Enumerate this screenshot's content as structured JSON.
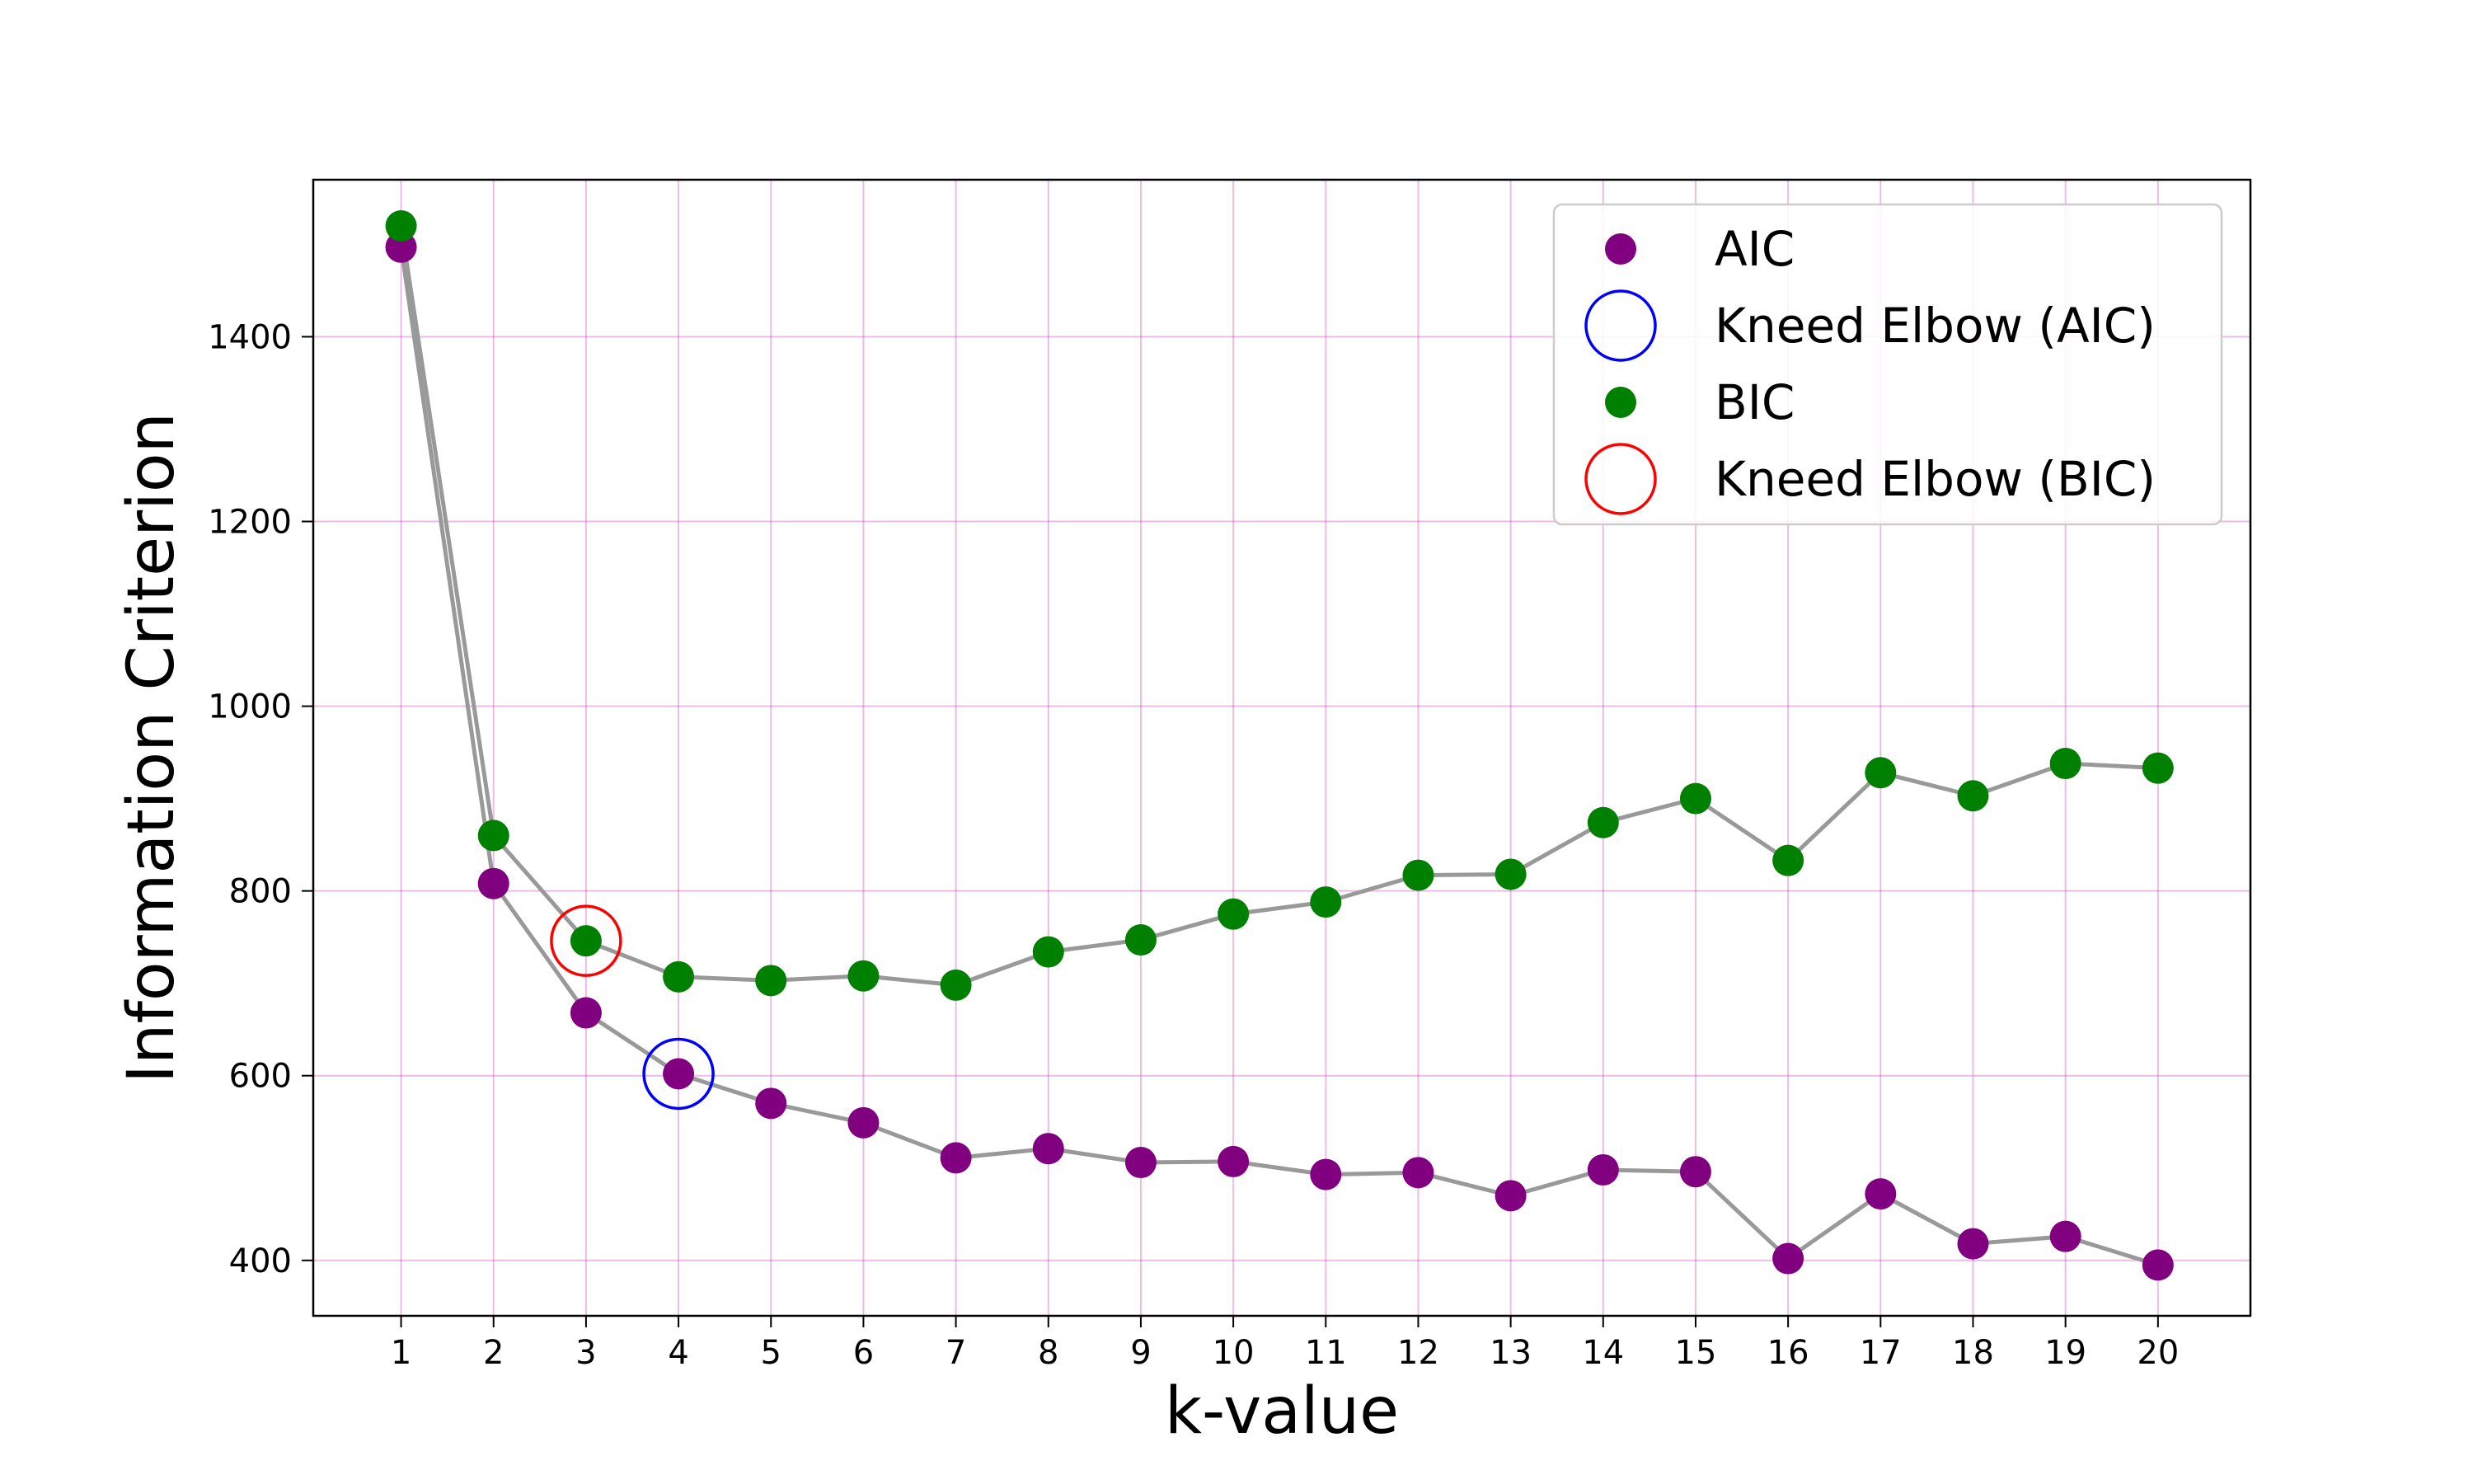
{
  "chart_data": {
    "type": "scatter",
    "title": "",
    "xlabel": "k-value",
    "ylabel": "Information Criterion",
    "x": [
      1,
      2,
      3,
      4,
      5,
      6,
      7,
      8,
      9,
      10,
      11,
      12,
      13,
      14,
      15,
      16,
      17,
      18,
      19,
      20
    ],
    "xticks": [
      "1",
      "2",
      "3",
      "4",
      "5",
      "6",
      "7",
      "8",
      "9",
      "10",
      "11",
      "12",
      "13",
      "14",
      "15",
      "16",
      "17",
      "18",
      "19",
      "20"
    ],
    "xlim": [
      0.05,
      21.0
    ],
    "ylim": [
      340,
      1570
    ],
    "yticks": [
      400,
      600,
      800,
      1000,
      1200,
      1400
    ],
    "grid": true,
    "grid_color": "#bf40bf",
    "line_color": "#999999",
    "legend_position": "top-right",
    "series": [
      {
        "name": "AIC",
        "color": "#800080",
        "values": [
          1497,
          808,
          668,
          602,
          570,
          549,
          511,
          521,
          506,
          507,
          493,
          495,
          470,
          498,
          496,
          402,
          472,
          418,
          426,
          395
        ]
      },
      {
        "name": "BIC",
        "color": "#008000",
        "values": [
          1520,
          860,
          746,
          707,
          703,
          708,
          698,
          734,
          747,
          775,
          788,
          817,
          818,
          874,
          900,
          833,
          928,
          903,
          938,
          933
        ]
      }
    ],
    "elbows": [
      {
        "name": "Kneed Elbow (AIC)",
        "color": "#0000ff",
        "x": 4,
        "y": 602
      },
      {
        "name": "Kneed Elbow (BIC)",
        "color": "#ff0000",
        "x": 3,
        "y": 746
      }
    ],
    "legend": [
      {
        "label": "AIC",
        "marker": "dot",
        "color": "#800080"
      },
      {
        "label": "Kneed Elbow (AIC)",
        "marker": "ring",
        "color": "#0000ff"
      },
      {
        "label": "BIC",
        "marker": "dot",
        "color": "#008000"
      },
      {
        "label": "Kneed Elbow (BIC)",
        "marker": "ring",
        "color": "#ff0000"
      }
    ]
  }
}
